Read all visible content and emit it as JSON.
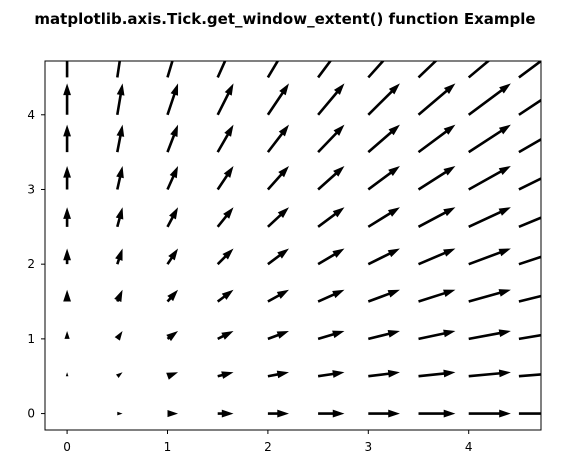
{
  "chart_data": {
    "type": "quiver",
    "title": "matplotlib.axis.Tick.get_window_extent() function Example",
    "xlabel": "",
    "ylabel": "",
    "xlim": [
      -0.22,
      4.72
    ],
    "ylim": [
      -0.22,
      4.72
    ],
    "xticks": [
      0,
      1,
      2,
      3,
      4
    ],
    "yticks": [
      0,
      1,
      2,
      3,
      4
    ],
    "xtick_labels": [
      "0",
      "1",
      "2",
      "3",
      "4"
    ],
    "ytick_labels": [
      "0",
      "1",
      "2",
      "3",
      "4"
    ],
    "grid": false,
    "legend": "none",
    "color": "#000000",
    "field": {
      "x": [
        0,
        0.5,
        1,
        1.5,
        2,
        2.5,
        3,
        3.5,
        4,
        4.5
      ],
      "y": [
        0,
        0.5,
        1,
        1.5,
        2,
        2.5,
        3,
        3.5,
        4,
        4.5
      ],
      "u": "x",
      "v": "y"
    }
  }
}
